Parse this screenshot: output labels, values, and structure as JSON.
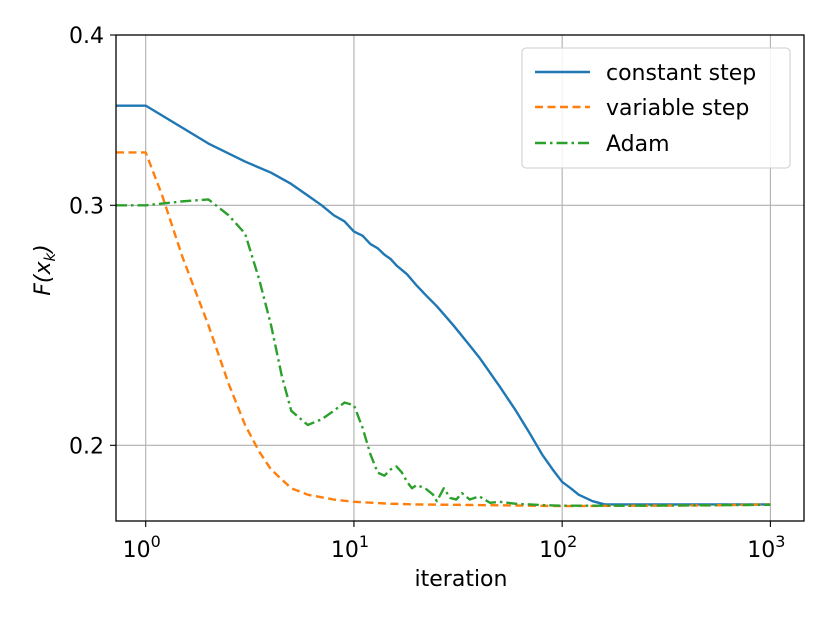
{
  "chart_data": {
    "type": "line",
    "xscale": "log",
    "yscale": "log",
    "xlim": [
      0.72,
      1450
    ],
    "ylim": [
      0.176,
      0.4
    ],
    "grid": true,
    "legend_position": "top-right",
    "xlabel": "iteration",
    "ylabel": "F(x_k)",
    "ylabel_base": "F(x",
    "ylabel_sub": "k",
    "ylabel_close": ")",
    "xticks": [
      {
        "value": 1,
        "base": "10",
        "exp": "0"
      },
      {
        "value": 10,
        "base": "10",
        "exp": "1"
      },
      {
        "value": 100,
        "base": "10",
        "exp": "2"
      },
      {
        "value": 1000,
        "base": "10",
        "exp": "3"
      }
    ],
    "yticks": [
      {
        "value": 0.2,
        "label": "0.2"
      },
      {
        "value": 0.3,
        "label": "0.3"
      },
      {
        "value": 0.4,
        "label": "0.4"
      }
    ],
    "series": [
      {
        "name": "constant step",
        "color": "#1f77b4",
        "dash": "solid",
        "points": [
          [
            0.72,
            0.355
          ],
          [
            1,
            0.355
          ],
          [
            1.5,
            0.342
          ],
          [
            2,
            0.333
          ],
          [
            3,
            0.323
          ],
          [
            4,
            0.317
          ],
          [
            5,
            0.311
          ],
          [
            6,
            0.305
          ],
          [
            7,
            0.3
          ],
          [
            8,
            0.295
          ],
          [
            9,
            0.292
          ],
          [
            10,
            0.287
          ],
          [
            11,
            0.285
          ],
          [
            12,
            0.281
          ],
          [
            13,
            0.279
          ],
          [
            14,
            0.276
          ],
          [
            15,
            0.274
          ],
          [
            16,
            0.271
          ],
          [
            18,
            0.267
          ],
          [
            20,
            0.262
          ],
          [
            22,
            0.258
          ],
          [
            25,
            0.253
          ],
          [
            30,
            0.245
          ],
          [
            35,
            0.238
          ],
          [
            40,
            0.232
          ],
          [
            50,
            0.221
          ],
          [
            60,
            0.212
          ],
          [
            70,
            0.204
          ],
          [
            80,
            0.197
          ],
          [
            90,
            0.192
          ],
          [
            100,
            0.188
          ],
          [
            110,
            0.186
          ],
          [
            120,
            0.184
          ],
          [
            140,
            0.182
          ],
          [
            160,
            0.181
          ],
          [
            200,
            0.181
          ],
          [
            300,
            0.181
          ],
          [
            500,
            0.181
          ],
          [
            700,
            0.181
          ],
          [
            1000,
            0.181
          ]
        ]
      },
      {
        "name": "variable step",
        "color": "#ff7f0e",
        "dash": "dashed",
        "points": [
          [
            0.72,
            0.328
          ],
          [
            1,
            0.328
          ],
          [
            1.2,
            0.305
          ],
          [
            1.5,
            0.275
          ],
          [
            2,
            0.245
          ],
          [
            2.5,
            0.222
          ],
          [
            3,
            0.207
          ],
          [
            3.5,
            0.198
          ],
          [
            4,
            0.192
          ],
          [
            5,
            0.186
          ],
          [
            6,
            0.184
          ],
          [
            8,
            0.1825
          ],
          [
            10,
            0.1818
          ],
          [
            15,
            0.1812
          ],
          [
            20,
            0.181
          ],
          [
            40,
            0.1808
          ],
          [
            100,
            0.1805
          ],
          [
            200,
            0.1806
          ],
          [
            500,
            0.1807
          ],
          [
            1000,
            0.181
          ]
        ]
      },
      {
        "name": "Adam",
        "color": "#2ca02c",
        "dash": "dashdot",
        "points": [
          [
            0.72,
            0.3
          ],
          [
            1,
            0.3
          ],
          [
            1.5,
            0.302
          ],
          [
            2,
            0.303
          ],
          [
            2.5,
            0.295
          ],
          [
            3,
            0.286
          ],
          [
            3.5,
            0.265
          ],
          [
            4,
            0.245
          ],
          [
            4.5,
            0.225
          ],
          [
            5,
            0.212
          ],
          [
            6,
            0.207
          ],
          [
            7,
            0.209
          ],
          [
            8,
            0.212
          ],
          [
            9,
            0.215
          ],
          [
            10,
            0.214
          ],
          [
            11,
            0.206
          ],
          [
            12,
            0.197
          ],
          [
            13,
            0.191
          ],
          [
            14,
            0.19
          ],
          [
            15,
            0.192
          ],
          [
            16,
            0.193
          ],
          [
            17,
            0.191
          ],
          [
            18,
            0.188
          ],
          [
            19,
            0.186
          ],
          [
            20,
            0.187
          ],
          [
            22,
            0.186
          ],
          [
            24,
            0.184
          ],
          [
            25,
            0.182
          ],
          [
            26,
            0.184
          ],
          [
            27,
            0.186
          ],
          [
            29,
            0.183
          ],
          [
            31,
            0.1825
          ],
          [
            33,
            0.1845
          ],
          [
            36,
            0.1825
          ],
          [
            40,
            0.1835
          ],
          [
            45,
            0.1815
          ],
          [
            50,
            0.1818
          ],
          [
            60,
            0.1812
          ],
          [
            80,
            0.1808
          ],
          [
            100,
            0.1806
          ],
          [
            200,
            0.1806
          ],
          [
            400,
            0.1807
          ],
          [
            700,
            0.1808
          ],
          [
            1000,
            0.1809
          ]
        ]
      }
    ]
  }
}
